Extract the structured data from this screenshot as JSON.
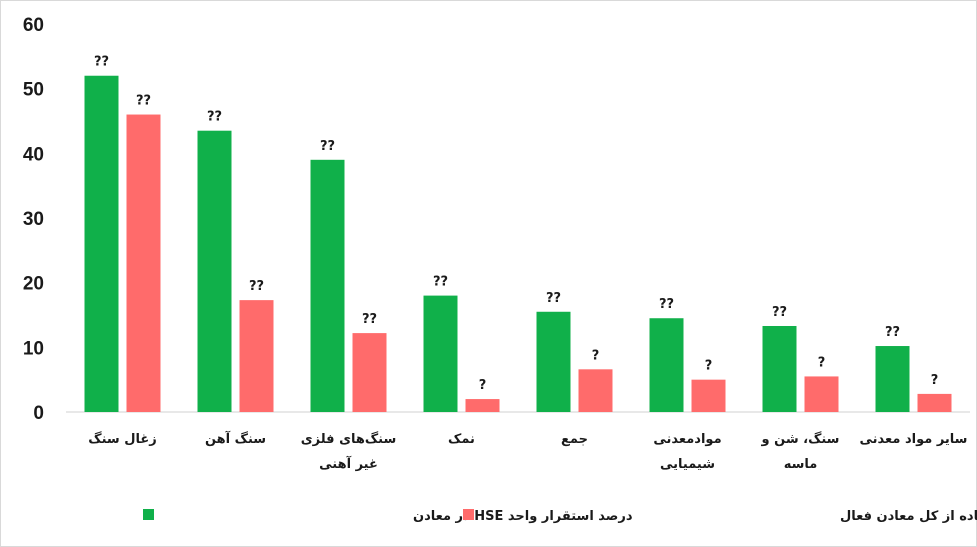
{
  "chart_data": {
    "type": "bar",
    "categories": [
      "زغال سنگ",
      "سنگ آهن",
      "سنگ‌های فلزی غیر آهنی",
      "نمک",
      "جمع",
      "موادمعدنی شیمیایی",
      "سنگ، شن و ماسه",
      "سایر مواد معدنی"
    ],
    "category_lines": [
      [
        "زغال سنگ"
      ],
      [
        "سنگ آهن"
      ],
      [
        "سنگ‌های فلزی",
        "غیر آهنی"
      ],
      [
        "نمک"
      ],
      [
        "جمع"
      ],
      [
        "موادمعدنی",
        "شیمیایی"
      ],
      [
        "سنگ، شن و",
        "ماسه"
      ],
      [
        "سایر مواد معدنی"
      ]
    ],
    "series": [
      {
        "name": "درصد استقرار واحد HSE در معادن",
        "color": "#10b04a",
        "values": [
          52,
          43.5,
          39,
          18,
          15.5,
          14.5,
          13.3,
          10.2
        ],
        "data_labels": [
          "??",
          "??",
          "??",
          "??",
          "??",
          "??",
          "??",
          "??"
        ]
      },
      {
        "name": "درصد معادن حادثه اتفاق افتاده از کل معادن فعال",
        "color": "#ff6b6b",
        "values": [
          46,
          17.3,
          12.2,
          2,
          6.6,
          5,
          5.5,
          2.8
        ],
        "data_labels": [
          "??",
          "??",
          "??",
          "?",
          "?",
          "?",
          "?",
          "?"
        ]
      }
    ],
    "ylim": [
      0,
      60
    ],
    "yticks": [
      "0",
      "10",
      "20",
      "30",
      "40",
      "50",
      "60"
    ],
    "grid": false,
    "legend_position": "bottom",
    "title": "",
    "xlabel": "",
    "ylabel": ""
  }
}
